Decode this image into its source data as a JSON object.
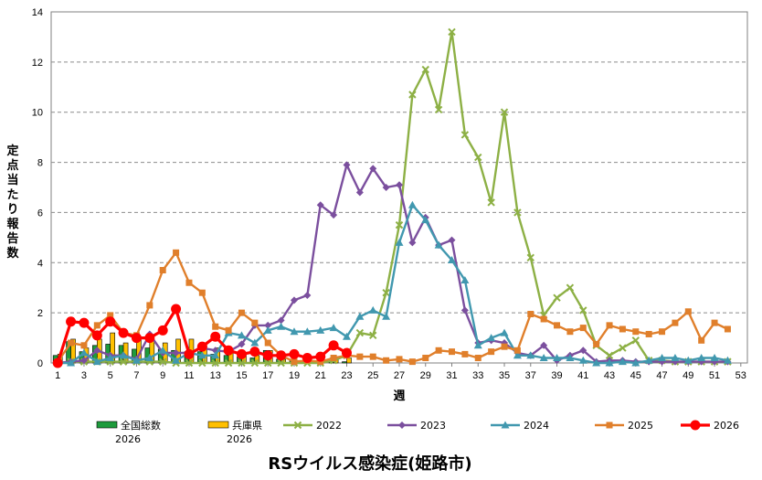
{
  "chart_data": {
    "type": "line",
    "title": "RSウイルス感染症(姫路市)",
    "xlabel": "週",
    "ylabel": "定点当たり報告数",
    "ylim": [
      0,
      14
    ],
    "yticks": [
      "0",
      "2",
      "4",
      "6",
      "8",
      "10",
      "12",
      "14"
    ],
    "xlim": [
      1,
      53
    ],
    "xticks": [
      "1",
      "3",
      "5",
      "7",
      "9",
      "11",
      "13",
      "15",
      "17",
      "19",
      "21",
      "23",
      "25",
      "27",
      "29",
      "31",
      "33",
      "35",
      "37",
      "39",
      "41",
      "43",
      "45",
      "47",
      "49",
      "51",
      "53"
    ],
    "grid": "horizontal dashed",
    "legend": "bottom",
    "bars": [
      {
        "name": "全国総数\n2026",
        "color": "#1E9B3C",
        "x": [
          1,
          2,
          3,
          4,
          5,
          6,
          7,
          8,
          9,
          10,
          11,
          12,
          13,
          14,
          15,
          16,
          17,
          18,
          19,
          20,
          21,
          22,
          23
        ],
        "values": [
          0.3,
          0.85,
          0.45,
          0.7,
          0.75,
          0.7,
          0.55,
          0.6,
          0.55,
          0.5,
          0.45,
          0.45,
          0.35,
          0.3,
          0.25,
          0.2,
          0.5,
          0.15,
          0.1,
          0.1,
          0.08,
          0.05,
          0.05
        ]
      },
      {
        "name": "兵庫県\n2026",
        "color": "#FFC000",
        "x": [
          1,
          2,
          3,
          4,
          5,
          6,
          7,
          8,
          9,
          10,
          11,
          12,
          13,
          14,
          15,
          16,
          17,
          18,
          19,
          20,
          21,
          22,
          23
        ],
        "values": [
          0.35,
          0.95,
          0.6,
          0.95,
          1.2,
          0.8,
          1.0,
          0.95,
          0.8,
          0.95,
          0.95,
          0.7,
          0.6,
          0.5,
          0.3,
          0.3,
          0.5,
          0.15,
          0.1,
          0.1,
          0.1,
          0.25,
          0.2
        ]
      }
    ],
    "series": [
      {
        "name": "2022",
        "color": "#8DB045",
        "marker": "x",
        "x": [
          1,
          2,
          3,
          4,
          5,
          6,
          7,
          8,
          9,
          10,
          11,
          12,
          13,
          14,
          15,
          16,
          17,
          18,
          19,
          20,
          21,
          22,
          23,
          24,
          25,
          26,
          27,
          28,
          29,
          30,
          31,
          32,
          33,
          34,
          35,
          36,
          37,
          38,
          39,
          40,
          41,
          42,
          43,
          44,
          45,
          46,
          47,
          48,
          49,
          50,
          51,
          52
        ],
        "values": [
          0,
          0.05,
          0.05,
          0.05,
          0.05,
          0.05,
          0.05,
          0.05,
          0.05,
          0,
          0,
          0,
          0,
          0,
          0,
          0,
          0,
          0,
          0,
          0,
          0,
          0.1,
          0.3,
          1.2,
          1.1,
          2.8,
          5.5,
          10.7,
          11.7,
          10.1,
          13.2,
          9.1,
          8.2,
          6.4,
          10.0,
          6.0,
          4.2,
          1.9,
          2.6,
          3.0,
          2.1,
          0.7,
          0.3,
          0.6,
          0.9,
          0.1,
          0.1,
          0.05,
          0.05,
          0.05,
          0.05,
          0.05
        ]
      },
      {
        "name": "2023",
        "color": "#7B4F9E",
        "marker": "diamond",
        "x": [
          1,
          2,
          3,
          4,
          5,
          6,
          7,
          8,
          9,
          10,
          11,
          12,
          13,
          14,
          15,
          16,
          17,
          18,
          19,
          20,
          21,
          22,
          23,
          24,
          25,
          26,
          27,
          28,
          29,
          30,
          31,
          32,
          33,
          34,
          35,
          36,
          37,
          38,
          39,
          40,
          41,
          42,
          43,
          44,
          45,
          46,
          47,
          48,
          49,
          50,
          51,
          52
        ],
        "values": [
          0,
          0.05,
          0.1,
          0.5,
          0.3,
          0.3,
          0.15,
          1.15,
          0.4,
          0.4,
          0.4,
          0.6,
          0.5,
          0.45,
          0.75,
          1.5,
          1.5,
          1.7,
          2.5,
          2.7,
          6.3,
          5.9,
          7.9,
          6.8,
          7.75,
          7.0,
          7.1,
          4.8,
          5.8,
          4.7,
          4.9,
          2.1,
          0.8,
          0.9,
          0.8,
          0.4,
          0.3,
          0.7,
          0.1,
          0.3,
          0.5,
          0.05,
          0.1,
          0.1,
          0.05,
          0.05,
          0.05,
          0.05,
          0.05,
          0.05,
          0.05,
          0.05
        ]
      },
      {
        "name": "2024",
        "color": "#4198AF",
        "marker": "triangle",
        "x": [
          1,
          2,
          3,
          4,
          5,
          6,
          7,
          8,
          9,
          10,
          11,
          12,
          13,
          14,
          15,
          16,
          17,
          18,
          19,
          20,
          21,
          22,
          23,
          24,
          25,
          26,
          27,
          28,
          29,
          30,
          31,
          32,
          33,
          34,
          35,
          36,
          37,
          38,
          39,
          40,
          41,
          42,
          43,
          44,
          45,
          46,
          47,
          48,
          49,
          50,
          51,
          52
        ],
        "values": [
          0,
          0,
          0.4,
          0.05,
          0.2,
          0.3,
          0.1,
          0.2,
          0.5,
          0.1,
          0.4,
          0.3,
          0.3,
          1.2,
          1.1,
          0.8,
          1.3,
          1.45,
          1.25,
          1.25,
          1.3,
          1.4,
          1.05,
          1.85,
          2.1,
          1.85,
          4.8,
          6.3,
          5.7,
          4.7,
          4.1,
          3.3,
          0.7,
          1.0,
          1.2,
          0.3,
          0.3,
          0.2,
          0.2,
          0.2,
          0.1,
          0,
          0,
          0.05,
          0,
          0.1,
          0.2,
          0.2,
          0.1,
          0.2,
          0.2,
          0.1
        ]
      },
      {
        "name": "2025",
        "color": "#E07F2B",
        "marker": "square",
        "x": [
          1,
          2,
          3,
          4,
          5,
          6,
          7,
          8,
          9,
          10,
          11,
          12,
          13,
          14,
          15,
          16,
          17,
          18,
          19,
          20,
          21,
          22,
          23,
          24,
          25,
          26,
          27,
          28,
          29,
          30,
          31,
          32,
          33,
          34,
          35,
          36,
          37,
          38,
          39,
          40,
          41,
          42,
          43,
          44,
          45,
          46,
          47,
          48,
          49,
          50,
          51,
          52
        ],
        "values": [
          0.05,
          0.8,
          0.7,
          1.5,
          1.9,
          1.2,
          1.1,
          2.3,
          3.7,
          4.4,
          3.2,
          2.8,
          1.45,
          1.3,
          2.0,
          1.6,
          0.8,
          0.3,
          0.05,
          0.1,
          0.05,
          0.2,
          0.3,
          0.25,
          0.25,
          0.1,
          0.15,
          0.05,
          0.2,
          0.5,
          0.45,
          0.35,
          0.2,
          0.45,
          0.65,
          0.5,
          1.95,
          1.75,
          1.5,
          1.25,
          1.4,
          0.75,
          1.5,
          1.35,
          1.25,
          1.15,
          1.25,
          1.6,
          2.05,
          0.9,
          1.6,
          1.35
        ]
      },
      {
        "name": "2026",
        "color": "#FF0000",
        "marker": "circle",
        "x": [
          1,
          2,
          3,
          4,
          5,
          6,
          7,
          8,
          9,
          10,
          11,
          12,
          13,
          14,
          15,
          16,
          17,
          18,
          19,
          20,
          21,
          22,
          23
        ],
        "values": [
          0,
          1.65,
          1.6,
          1.1,
          1.65,
          1.2,
          1.0,
          1.0,
          1.3,
          2.15,
          0.35,
          0.65,
          1.05,
          0.5,
          0.35,
          0.45,
          0.3,
          0.3,
          0.35,
          0.2,
          0.25,
          0.7,
          0.4
        ]
      }
    ]
  }
}
